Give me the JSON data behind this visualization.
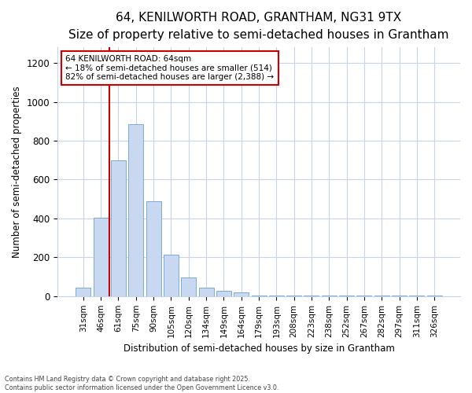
{
  "title1": "64, KENILWORTH ROAD, GRANTHAM, NG31 9TX",
  "title2": "Size of property relative to semi-detached houses in Grantham",
  "xlabel": "Distribution of semi-detached houses by size in Grantham",
  "ylabel": "Number of semi-detached properties",
  "bar_color": "#c8d8f0",
  "bar_edge_color": "#7aaad4",
  "categories": [
    "31sqm",
    "46sqm",
    "61sqm",
    "75sqm",
    "90sqm",
    "105sqm",
    "120sqm",
    "134sqm",
    "149sqm",
    "164sqm",
    "179sqm",
    "193sqm",
    "208sqm",
    "223sqm",
    "238sqm",
    "252sqm",
    "267sqm",
    "282sqm",
    "297sqm",
    "311sqm",
    "326sqm"
  ],
  "values": [
    42,
    405,
    700,
    885,
    490,
    215,
    97,
    42,
    28,
    20,
    5,
    5,
    2,
    2,
    2,
    2,
    2,
    2,
    2,
    2,
    5
  ],
  "vline_x": 1.5,
  "annotation_title": "64 KENILWORTH ROAD: 64sqm",
  "annotation_line1": "← 18% of semi-detached houses are smaller (514)",
  "annotation_line2": "82% of semi-detached houses are larger (2,388) →",
  "vline_color": "#cc0000",
  "annotation_box_edge": "#cc0000",
  "ylim": [
    0,
    1280
  ],
  "yticks": [
    0,
    200,
    400,
    600,
    800,
    1000,
    1200
  ],
  "footer1": "Contains HM Land Registry data © Crown copyright and database right 2025.",
  "footer2": "Contains public sector information licensed under the Open Government Licence v3.0.",
  "bg_color": "#ffffff",
  "grid_color": "#c8d4e8",
  "title_fontsize": 11,
  "subtitle_fontsize": 9
}
